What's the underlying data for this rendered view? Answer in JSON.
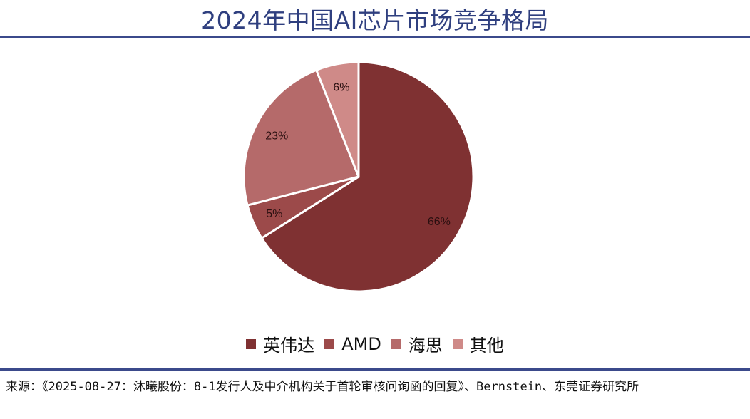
{
  "title": "2024年中国AI芯片市场竞争格局",
  "source": "来源：《2025-08-27：沐曦股份：8-1发行人及中介机构关于首轮审核问询函的回复》、Bernstein、东莞证券研究所",
  "chart_data": {
    "type": "pie",
    "title": "2024年中国AI芯片市场竞争格局",
    "categories": [
      "英伟达",
      "AMD",
      "海思",
      "其他"
    ],
    "values": [
      66,
      5,
      23,
      6
    ],
    "labels": [
      "66%",
      "5%",
      "23%",
      "6%"
    ],
    "colors": [
      "#7f3132",
      "#9c4a4a",
      "#b56a6a",
      "#cf8a88"
    ],
    "start": "12 o'clock, clockwise",
    "legend": "bottom"
  }
}
